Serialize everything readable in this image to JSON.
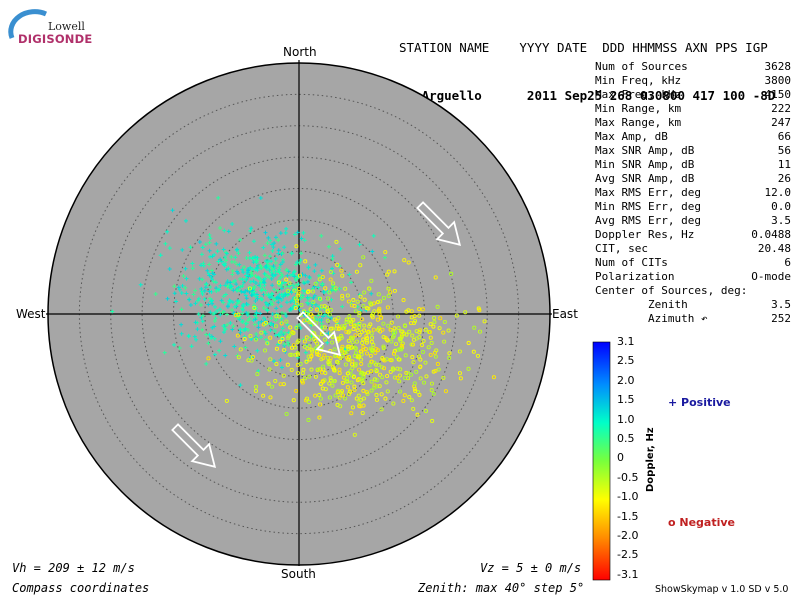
{
  "logo": {
    "top": "Lowell",
    "main": "DIGISONDE"
  },
  "header": {
    "line1": "STATION NAME    YYYY DATE  DDD HHMMSS AXN PPS IGP",
    "line2": "Pt Arguello      2011 Sep25 268 030800 417 100 -8D"
  },
  "stats": [
    {
      "label": "Num of Sources",
      "value": "3628"
    },
    {
      "label": "Min Freq, kHz",
      "value": "3800"
    },
    {
      "label": "Max Freq, kHz",
      "value": "4150"
    },
    {
      "label": "Min Range, km",
      "value": "222"
    },
    {
      "label": "Max Range, km",
      "value": "247"
    },
    {
      "label": "Max Amp, dB",
      "value": "66"
    },
    {
      "label": "Max SNR Amp, dB",
      "value": "56"
    },
    {
      "label": "Min SNR Amp, dB",
      "value": "11"
    },
    {
      "label": "Avg SNR Amp, dB",
      "value": "26"
    },
    {
      "label": "Max RMS Err, deg",
      "value": "12.0"
    },
    {
      "label": "Min RMS Err, deg",
      "value": "0.0"
    },
    {
      "label": "Avg RMS Err, deg",
      "value": "3.5"
    },
    {
      "label": "Doppler Res, Hz",
      "value": "0.0488"
    },
    {
      "label": "CIT, sec",
      "value": "20.48"
    },
    {
      "label": "Num of CITs",
      "value": "6"
    },
    {
      "label": "Polarization",
      "value": "O-mode"
    },
    {
      "label": "Center of Sources, deg:",
      "value": ""
    },
    {
      "label": "        Zenith",
      "value": "3.5"
    },
    {
      "label": "        Azimuth ↶",
      "value": "252"
    }
  ],
  "compass": {
    "north": "North",
    "south": "South",
    "east": "East",
    "west": "West"
  },
  "colorbar": {
    "title": "Doppler, Hz",
    "ticks": [
      "3.1",
      "2.5",
      "2.0",
      "1.5",
      "1.0",
      "0.5",
      "0",
      "-0.5",
      "-1.0",
      "-1.5",
      "-2.0",
      "-2.5",
      "-3.1"
    ]
  },
  "legend": {
    "positive": "+ Positive",
    "negative": "o Negative"
  },
  "footer": {
    "vh": "Vh = 209 ± 12 m/s",
    "vz": "Vz = 5 ± 0 m/s",
    "coords": "Compass coordinates",
    "zenith": "Zenith: max 40°  step 5°",
    "version": "ShowSkymap v 1.0   SD v 5.0"
  },
  "colors": {
    "disk": "#a6a6a6",
    "positive": "#1a1aa0",
    "negative": "#c02020"
  },
  "chart_data": {
    "type": "scatter",
    "title": "",
    "xlabel": "",
    "ylabel": "",
    "zenith_max_deg": 40,
    "zenith_step_deg": 5,
    "center_zenith_deg": 3.5,
    "center_azimuth_deg": 252,
    "clusters": [
      {
        "name": "Positive",
        "marker": "+",
        "doppler_hz": [
          0.5,
          1.4
        ],
        "zenith_center_deg": 7,
        "azimuth_center_deg": 300,
        "spread_deg": 6
      },
      {
        "name": "Negative",
        "marker": "o",
        "doppler_hz": [
          -1.3,
          -0.3
        ],
        "zenith_center_deg": 10,
        "azimuth_center_deg": 120,
        "spread_deg": 7
      }
    ],
    "drift_arrows_azimuth_deg": [
      135,
      135,
      135
    ]
  }
}
